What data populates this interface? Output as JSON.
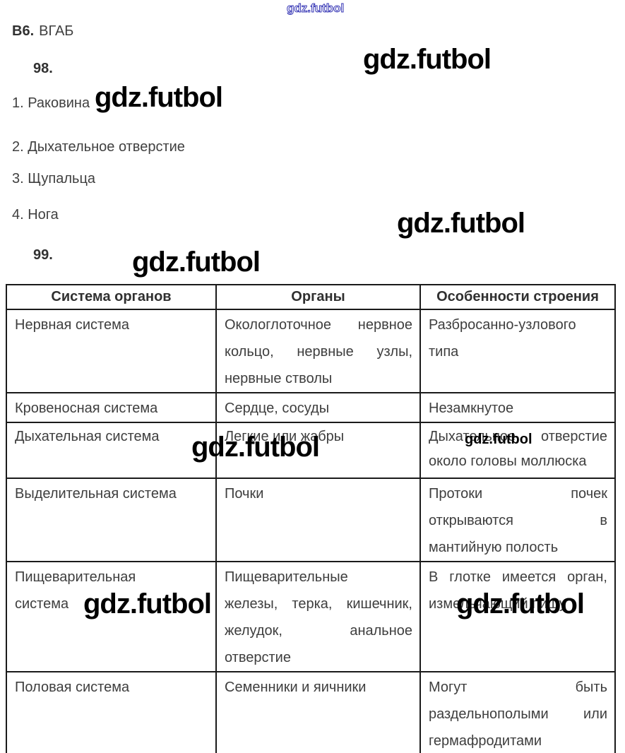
{
  "watermark": {
    "text": "gdz.futbol",
    "blue": "#3434b4"
  },
  "header": {
    "b6_label": "В6.",
    "b6_value": "ВГАБ",
    "q98": "98.",
    "q99": "99."
  },
  "answer_list": [
    "1. Раковина",
    "2. Дыхательное отверстие",
    "3. Щупальца",
    "4. Нога"
  ],
  "table": {
    "headers": [
      "Система органов",
      "Органы",
      "Особенности строения"
    ],
    "rows": [
      {
        "cells": [
          [
            {
              "t": "Нервная система"
            }
          ],
          [
            {
              "t": "Окологлоточное нервное",
              "j": true
            },
            {
              "t": "кольцо, нервные узлы,",
              "j": true
            },
            {
              "t": "нервные стволы"
            }
          ],
          [
            {
              "t": "Разбросанно-узлового"
            },
            {
              "t": "типа"
            }
          ]
        ]
      },
      {
        "cells": [
          [
            {
              "t": "Кровеносная система"
            }
          ],
          [
            {
              "t": "Сердце, сосуды"
            }
          ],
          [
            {
              "t": "Незамкнутое"
            }
          ]
        ]
      },
      {
        "cells": [
          [
            {
              "t": "Дыхательная система"
            }
          ],
          [
            {
              "t": "Легкие или жабры"
            }
          ],
          [
            {
              "t": "Дыхательное отверстие",
              "j": true
            },
            {
              "t": "около головы моллюска"
            }
          ]
        ]
      },
      {
        "cells": [
          [
            {
              "t": "Выделительная система"
            }
          ],
          [
            {
              "t": "Почки"
            }
          ],
          [
            {
              "t": "Протоки почек",
              "j": true
            },
            {
              "t": "открываются в",
              "j": true
            },
            {
              "t": "мантийную полость"
            }
          ]
        ]
      },
      {
        "cells": [
          [
            {
              "t": "Пищеварительная"
            },
            {
              "t": "система"
            }
          ],
          [
            {
              "t": "Пищеварительные"
            },
            {
              "t": "железы, терка, кишечник,",
              "j": true
            },
            {
              "t": "желудок, анальное",
              "j": true
            },
            {
              "t": "отверстие"
            }
          ],
          [
            {
              "t": "В глотке имеется орган,",
              "j": true
            },
            {
              "t": "измельчающий пищу"
            }
          ]
        ]
      },
      {
        "cells": [
          [
            {
              "t": "Половая система"
            }
          ],
          [
            {
              "t": "Семенники и яичники"
            }
          ],
          [
            {
              "t": "Могут быть",
              "j": true
            },
            {
              "t": "раздельнополыми или",
              "j": true
            },
            {
              "t": "гермафродитами"
            }
          ]
        ]
      }
    ]
  }
}
